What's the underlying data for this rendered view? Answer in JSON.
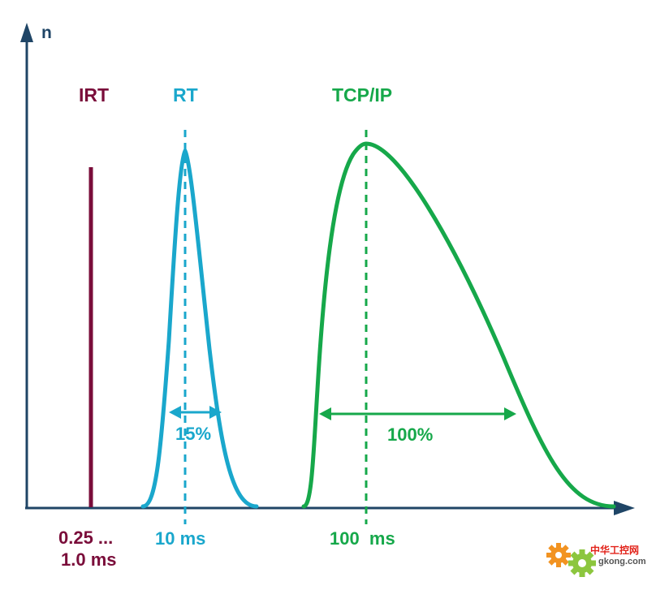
{
  "diagram": {
    "y_axis_label": "n",
    "colors": {
      "axis": "#1f4566",
      "irt": "#7a0d3a",
      "rt": "#1aa7cc",
      "tcpip": "#16a84a",
      "logo_orange": "#f29321",
      "logo_green": "#8cc63e",
      "logo_text_red": "#e2231a"
    },
    "classes": [
      {
        "key": "irt",
        "label": "IRT",
        "time_label_line1": "0.25 ...",
        "time_label_line2": "1.0 ms"
      },
      {
        "key": "rt",
        "label": "RT",
        "time_label": "10 ms",
        "jitter_label": "15%"
      },
      {
        "key": "tcpip",
        "label": "TCP/IP",
        "time_label": "100  ms",
        "jitter_label": "100%"
      }
    ],
    "watermark": {
      "text_cn": "中华工控网",
      "text_url": "gkong.com",
      "icons": [
        "gear-icon",
        "gear-icon"
      ]
    }
  }
}
